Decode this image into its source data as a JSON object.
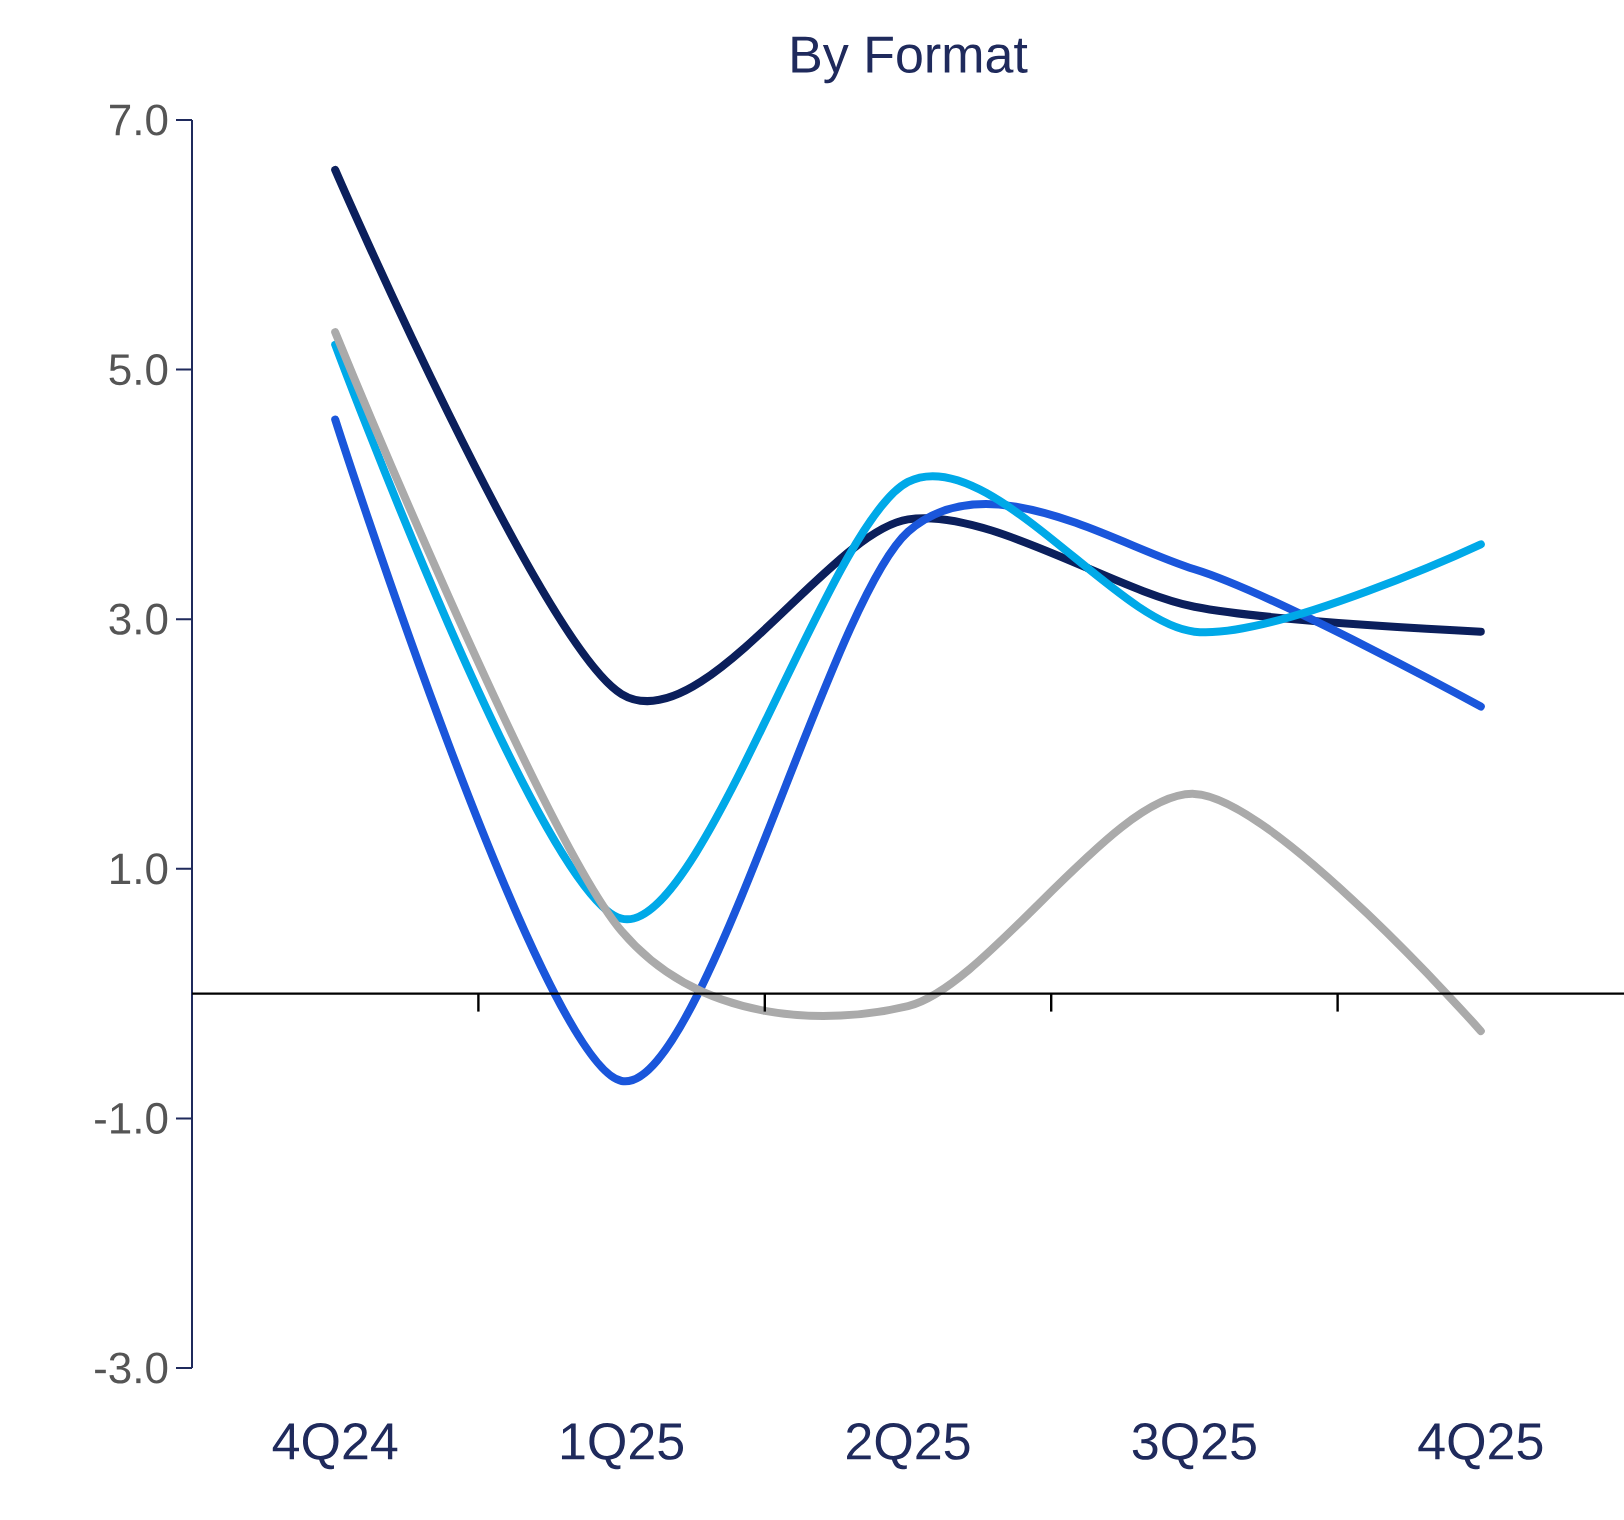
{
  "chart_data": {
    "type": "line",
    "title": "By Format",
    "categories": [
      "4Q24",
      "1Q25",
      "2Q25",
      "3Q25",
      "4Q25"
    ],
    "series": [
      {
        "color": "#0b1f5c",
        "values": [
          6.6,
          2.4,
          3.8,
          3.1,
          2.9
        ]
      },
      {
        "color": "#1a56db",
        "values": [
          4.6,
          -0.7,
          3.7,
          3.4,
          2.3
        ]
      },
      {
        "color": "#00a9e8",
        "values": [
          5.2,
          0.6,
          4.1,
          2.9,
          3.6
        ]
      },
      {
        "color": "#aaaaaa",
        "values": [
          5.3,
          0.5,
          -0.1,
          1.6,
          -0.3
        ]
      }
    ],
    "ylim": [
      -3,
      7
    ],
    "yticks": [
      {
        "value": -3,
        "label": "-3.0"
      },
      {
        "value": -1,
        "label": "-1.0"
      },
      {
        "value": 1,
        "label": "1.0"
      },
      {
        "value": 3,
        "label": "3.0"
      },
      {
        "value": 5,
        "label": "5.0"
      },
      {
        "value": 7,
        "label": "7.0"
      }
    ],
    "grid": false,
    "marker": "none",
    "line_style": "solid"
  }
}
